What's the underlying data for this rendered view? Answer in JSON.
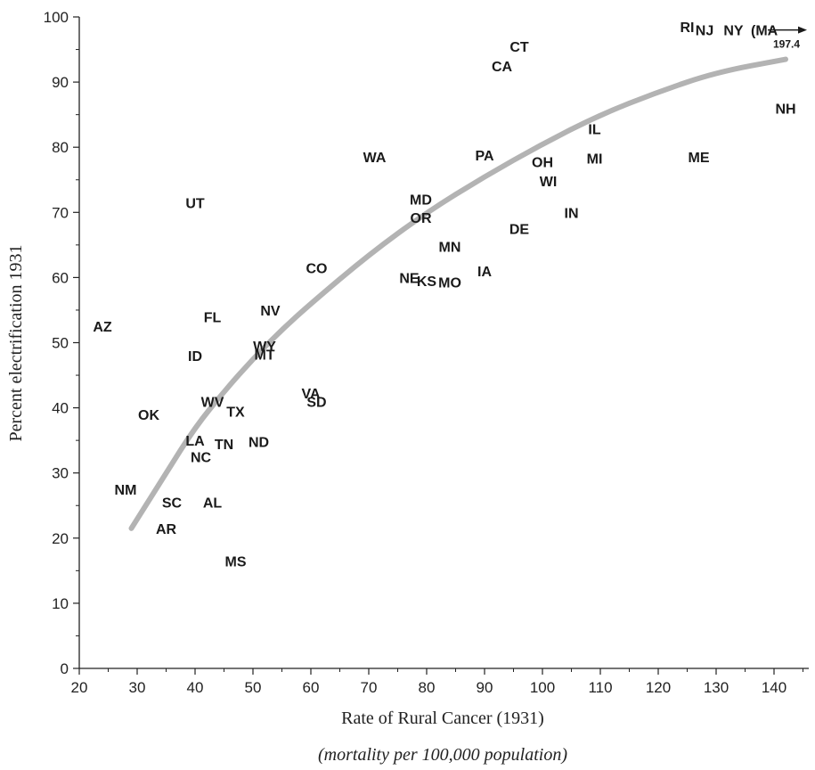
{
  "chart_data": {
    "type": "scatter",
    "title": "",
    "xlabel": "Rate of Rural Cancer (1931)",
    "xlabel_sub": "(mortality per 100,000 population)",
    "ylabel": "Percent electrification 1931",
    "xlim": [
      20,
      146
    ],
    "ylim": [
      0,
      100
    ],
    "x_ticks": [
      20,
      30,
      40,
      50,
      60,
      70,
      80,
      90,
      100,
      110,
      120,
      130,
      140
    ],
    "y_ticks": [
      0,
      10,
      20,
      30,
      40,
      50,
      60,
      70,
      80,
      90,
      100
    ],
    "grid": false,
    "points": [
      {
        "label": "AZ",
        "x": 24,
        "y": 52.5
      },
      {
        "label": "UT",
        "x": 40,
        "y": 71.5
      },
      {
        "label": "FL",
        "x": 43,
        "y": 54
      },
      {
        "label": "ID",
        "x": 40,
        "y": 48
      },
      {
        "label": "NV",
        "x": 53,
        "y": 55
      },
      {
        "label": "WY",
        "x": 52,
        "y": 49.5
      },
      {
        "label": "MT",
        "x": 52,
        "y": 48.2
      },
      {
        "label": "CO",
        "x": 61,
        "y": 61.5
      },
      {
        "label": "OK",
        "x": 32,
        "y": 39
      },
      {
        "label": "WV",
        "x": 43,
        "y": 41
      },
      {
        "label": "TX",
        "x": 47,
        "y": 39.5
      },
      {
        "label": "VA",
        "x": 60,
        "y": 42.3
      },
      {
        "label": "SD",
        "x": 61,
        "y": 41
      },
      {
        "label": "LA",
        "x": 40,
        "y": 35
      },
      {
        "label": "TN",
        "x": 45,
        "y": 34.5
      },
      {
        "label": "ND",
        "x": 51,
        "y": 34.8
      },
      {
        "label": "NC",
        "x": 41,
        "y": 32.5
      },
      {
        "label": "NM",
        "x": 28,
        "y": 27.5
      },
      {
        "label": "SC",
        "x": 36,
        "y": 25.5
      },
      {
        "label": "AL",
        "x": 43,
        "y": 25.5
      },
      {
        "label": "AR",
        "x": 35,
        "y": 21.5
      },
      {
        "label": "MS",
        "x": 47,
        "y": 16.5
      },
      {
        "label": "WA",
        "x": 71,
        "y": 78.5
      },
      {
        "label": "MD",
        "x": 79,
        "y": 72
      },
      {
        "label": "OR",
        "x": 79,
        "y": 69.2
      },
      {
        "label": "NE",
        "x": 77,
        "y": 60
      },
      {
        "label": "KS",
        "x": 80,
        "y": 59.5
      },
      {
        "label": "MO",
        "x": 84,
        "y": 59.3
      },
      {
        "label": "MN",
        "x": 84,
        "y": 64.8
      },
      {
        "label": "IA",
        "x": 90,
        "y": 61
      },
      {
        "label": "PA",
        "x": 90,
        "y": 78.8
      },
      {
        "label": "DE",
        "x": 96,
        "y": 67.5
      },
      {
        "label": "CA",
        "x": 93,
        "y": 92.5
      },
      {
        "label": "CT",
        "x": 96,
        "y": 95.5
      },
      {
        "label": "OH",
        "x": 100,
        "y": 77.8
      },
      {
        "label": "WI",
        "x": 101,
        "y": 74.8
      },
      {
        "label": "IL",
        "x": 109,
        "y": 82.8
      },
      {
        "label": "MI",
        "x": 109,
        "y": 78.3
      },
      {
        "label": "IN",
        "x": 105,
        "y": 70
      },
      {
        "label": "ME",
        "x": 127,
        "y": 78.5
      },
      {
        "label": "RI",
        "x": 125,
        "y": 98.5
      },
      {
        "label": "NJ",
        "x": 128,
        "y": 98
      },
      {
        "label": "NY",
        "x": 133,
        "y": 98
      },
      {
        "label": "NH",
        "x": 142,
        "y": 86
      }
    ],
    "annotation": {
      "label": "(MA",
      "value_text": "197.4",
      "y": 98
    },
    "fit_curve": [
      {
        "x": 29,
        "y": 21.5
      },
      {
        "x": 35,
        "y": 30
      },
      {
        "x": 40,
        "y": 37
      },
      {
        "x": 45,
        "y": 42.5
      },
      {
        "x": 50,
        "y": 47.5
      },
      {
        "x": 55,
        "y": 52
      },
      {
        "x": 60,
        "y": 56
      },
      {
        "x": 70,
        "y": 63.5
      },
      {
        "x": 80,
        "y": 70
      },
      {
        "x": 90,
        "y": 75.5
      },
      {
        "x": 100,
        "y": 80.5
      },
      {
        "x": 110,
        "y": 85
      },
      {
        "x": 120,
        "y": 88.5
      },
      {
        "x": 130,
        "y": 91.5
      },
      {
        "x": 142,
        "y": 93.5
      }
    ]
  }
}
